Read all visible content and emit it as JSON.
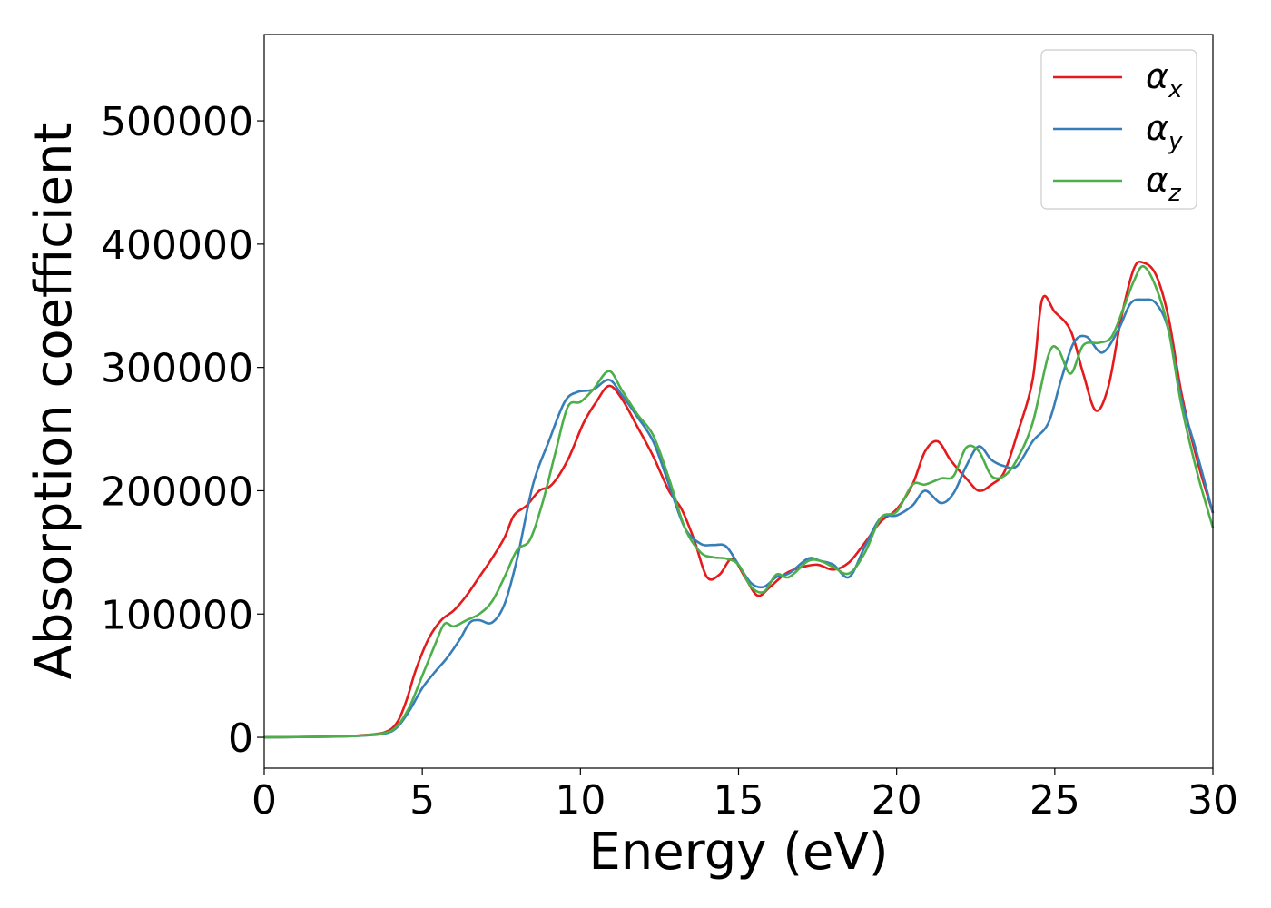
{
  "chart_data": {
    "type": "line",
    "title": "",
    "xlabel": "Energy (eV)",
    "ylabel": "Absorption coefficient",
    "xlim": [
      0,
      30
    ],
    "ylim": [
      -25000,
      570000
    ],
    "xticks": [
      0,
      5,
      10,
      15,
      20,
      25,
      30
    ],
    "yticks": [
      0,
      100000,
      200000,
      300000,
      400000,
      500000
    ],
    "legend_position": "top-right",
    "grid": false,
    "series": [
      {
        "name": "α_x",
        "label_main": "α",
        "label_sub": "x",
        "color": "#e41a1c",
        "points": [
          [
            0,
            0
          ],
          [
            2,
            500
          ],
          [
            3,
            1500
          ],
          [
            3.8,
            4000
          ],
          [
            4.2,
            12000
          ],
          [
            4.5,
            30000
          ],
          [
            4.8,
            55000
          ],
          [
            5.2,
            80000
          ],
          [
            5.6,
            95000
          ],
          [
            6,
            103000
          ],
          [
            6.4,
            115000
          ],
          [
            6.8,
            130000
          ],
          [
            7.2,
            145000
          ],
          [
            7.6,
            162000
          ],
          [
            7.9,
            180000
          ],
          [
            8.3,
            188000
          ],
          [
            8.7,
            200000
          ],
          [
            9.1,
            205000
          ],
          [
            9.6,
            225000
          ],
          [
            10.1,
            255000
          ],
          [
            10.5,
            272000
          ],
          [
            10.9,
            285000
          ],
          [
            11.3,
            275000
          ],
          [
            11.8,
            252000
          ],
          [
            12.3,
            228000
          ],
          [
            12.8,
            200000
          ],
          [
            13.2,
            185000
          ],
          [
            13.6,
            160000
          ],
          [
            14,
            130000
          ],
          [
            14.4,
            132000
          ],
          [
            14.8,
            145000
          ],
          [
            15.2,
            130000
          ],
          [
            15.6,
            115000
          ],
          [
            16,
            122000
          ],
          [
            16.5,
            133000
          ],
          [
            17,
            138000
          ],
          [
            17.5,
            140000
          ],
          [
            18,
            136000
          ],
          [
            18.5,
            142000
          ],
          [
            19,
            158000
          ],
          [
            19.5,
            175000
          ],
          [
            20,
            185000
          ],
          [
            20.5,
            205000
          ],
          [
            20.9,
            232000
          ],
          [
            21.3,
            240000
          ],
          [
            21.7,
            225000
          ],
          [
            22.2,
            210000
          ],
          [
            22.6,
            200000
          ],
          [
            23,
            205000
          ],
          [
            23.4,
            215000
          ],
          [
            23.8,
            245000
          ],
          [
            24.3,
            290000
          ],
          [
            24.6,
            355000
          ],
          [
            25,
            345000
          ],
          [
            25.5,
            330000
          ],
          [
            25.9,
            295000
          ],
          [
            26.3,
            265000
          ],
          [
            26.7,
            285000
          ],
          [
            27.1,
            340000
          ],
          [
            27.5,
            380000
          ],
          [
            27.8,
            385000
          ],
          [
            28.2,
            375000
          ],
          [
            28.6,
            340000
          ],
          [
            29,
            280000
          ],
          [
            29.5,
            225000
          ],
          [
            30,
            182000
          ]
        ]
      },
      {
        "name": "α_y",
        "label_main": "α",
        "label_sub": "y",
        "color": "#377eb8",
        "points": [
          [
            0,
            0
          ],
          [
            2,
            500
          ],
          [
            3,
            1200
          ],
          [
            3.8,
            3000
          ],
          [
            4.2,
            8000
          ],
          [
            4.6,
            22000
          ],
          [
            5,
            40000
          ],
          [
            5.4,
            53000
          ],
          [
            5.8,
            65000
          ],
          [
            6.2,
            80000
          ],
          [
            6.5,
            93000
          ],
          [
            6.8,
            95000
          ],
          [
            7.2,
            93000
          ],
          [
            7.6,
            108000
          ],
          [
            8,
            145000
          ],
          [
            8.5,
            205000
          ],
          [
            9,
            240000
          ],
          [
            9.5,
            272000
          ],
          [
            9.9,
            280000
          ],
          [
            10.4,
            282000
          ],
          [
            10.9,
            290000
          ],
          [
            11.3,
            278000
          ],
          [
            11.8,
            260000
          ],
          [
            12.3,
            240000
          ],
          [
            12.8,
            205000
          ],
          [
            13.3,
            170000
          ],
          [
            13.8,
            157000
          ],
          [
            14.2,
            156000
          ],
          [
            14.6,
            155000
          ],
          [
            15,
            140000
          ],
          [
            15.4,
            125000
          ],
          [
            15.8,
            122000
          ],
          [
            16.2,
            130000
          ],
          [
            16.6,
            133000
          ],
          [
            17.2,
            145000
          ],
          [
            17.6,
            143000
          ],
          [
            18,
            140000
          ],
          [
            18.5,
            130000
          ],
          [
            19,
            155000
          ],
          [
            19.5,
            178000
          ],
          [
            20,
            180000
          ],
          [
            20.5,
            188000
          ],
          [
            20.9,
            200000
          ],
          [
            21.4,
            190000
          ],
          [
            21.8,
            198000
          ],
          [
            22.2,
            220000
          ],
          [
            22.6,
            236000
          ],
          [
            23,
            225000
          ],
          [
            23.4,
            220000
          ],
          [
            23.8,
            220000
          ],
          [
            24.3,
            240000
          ],
          [
            24.8,
            255000
          ],
          [
            25.2,
            290000
          ],
          [
            25.6,
            320000
          ],
          [
            26,
            325000
          ],
          [
            26.5,
            312000
          ],
          [
            27,
            330000
          ],
          [
            27.4,
            352000
          ],
          [
            27.8,
            355000
          ],
          [
            28.2,
            352000
          ],
          [
            28.6,
            330000
          ],
          [
            29,
            275000
          ],
          [
            29.5,
            230000
          ],
          [
            30,
            182000
          ]
        ]
      },
      {
        "name": "α_z",
        "label_main": "α",
        "label_sub": "z",
        "color": "#4daf4a",
        "points": [
          [
            0,
            0
          ],
          [
            2,
            500
          ],
          [
            3,
            1300
          ],
          [
            3.8,
            3500
          ],
          [
            4.2,
            9000
          ],
          [
            4.6,
            25000
          ],
          [
            5,
            50000
          ],
          [
            5.4,
            75000
          ],
          [
            5.7,
            92000
          ],
          [
            6,
            90000
          ],
          [
            6.4,
            95000
          ],
          [
            6.8,
            100000
          ],
          [
            7.2,
            110000
          ],
          [
            7.6,
            130000
          ],
          [
            8,
            152000
          ],
          [
            8.4,
            160000
          ],
          [
            8.8,
            190000
          ],
          [
            9.2,
            230000
          ],
          [
            9.6,
            268000
          ],
          [
            10,
            272000
          ],
          [
            10.4,
            282000
          ],
          [
            10.9,
            297000
          ],
          [
            11.3,
            282000
          ],
          [
            11.8,
            262000
          ],
          [
            12.3,
            245000
          ],
          [
            12.8,
            210000
          ],
          [
            13.3,
            170000
          ],
          [
            13.8,
            150000
          ],
          [
            14.2,
            146000
          ],
          [
            14.6,
            145000
          ],
          [
            15,
            140000
          ],
          [
            15.4,
            122000
          ],
          [
            15.8,
            118000
          ],
          [
            16.2,
            132000
          ],
          [
            16.6,
            130000
          ],
          [
            17.2,
            143000
          ],
          [
            17.6,
            143000
          ],
          [
            18,
            138000
          ],
          [
            18.5,
            133000
          ],
          [
            19,
            150000
          ],
          [
            19.5,
            178000
          ],
          [
            20,
            183000
          ],
          [
            20.5,
            205000
          ],
          [
            20.9,
            205000
          ],
          [
            21.4,
            210000
          ],
          [
            21.8,
            212000
          ],
          [
            22.2,
            235000
          ],
          [
            22.6,
            232000
          ],
          [
            23,
            212000
          ],
          [
            23.4,
            212000
          ],
          [
            23.8,
            225000
          ],
          [
            24.3,
            255000
          ],
          [
            24.8,
            310000
          ],
          [
            25.1,
            315000
          ],
          [
            25.5,
            295000
          ],
          [
            25.9,
            318000
          ],
          [
            26.4,
            320000
          ],
          [
            26.8,
            325000
          ],
          [
            27.2,
            350000
          ],
          [
            27.5,
            370000
          ],
          [
            27.8,
            382000
          ],
          [
            28.2,
            365000
          ],
          [
            28.6,
            330000
          ],
          [
            29,
            270000
          ],
          [
            29.5,
            215000
          ],
          [
            30,
            170000
          ]
        ]
      }
    ]
  }
}
